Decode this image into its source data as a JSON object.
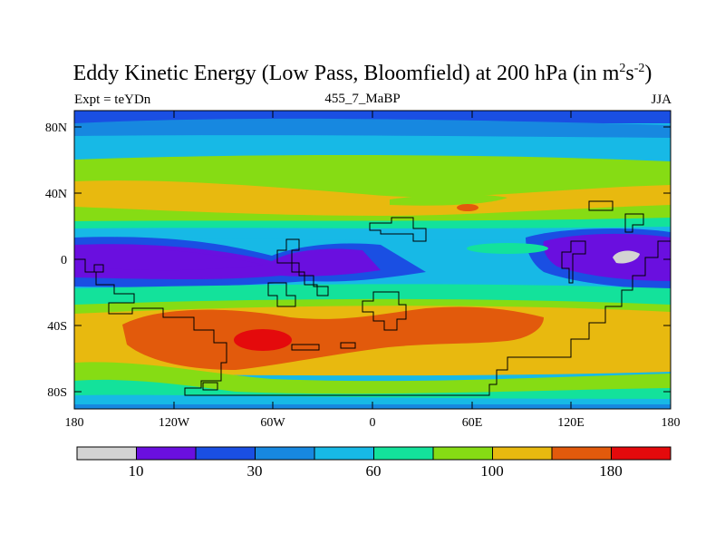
{
  "title": {
    "main": "Eddy Kinetic Energy (Low Pass, Bloomfield) at 200 hPa (in m",
    "sup1": "2",
    "mid": "s",
    "sup2": "-2",
    "end": ")"
  },
  "subtitle": {
    "left": "Expt = teYDn",
    "center": "455_7_MaBP",
    "right": "JJA"
  },
  "map": {
    "type": "filled-contour",
    "field": "Eddy Kinetic Energy",
    "units": "m2 s-2",
    "lon_range": [
      -180,
      180
    ],
    "lat_range": [
      -90,
      90
    ],
    "x_ticks": [
      "180",
      "120W",
      "60W",
      "0",
      "60E",
      "120E",
      "180"
    ],
    "y_ticks": [
      "80N",
      "40N",
      "0",
      "40S",
      "80S"
    ]
  },
  "colorbar": {
    "colors": [
      "#d3d3d3",
      "#6a0fdf",
      "#1a4fe3",
      "#1788e0",
      "#17b9e6",
      "#13e29b",
      "#86dc14",
      "#e8b90f",
      "#e25a0c",
      "#e40a0c"
    ],
    "labels": [
      "10",
      "30",
      "60",
      "100",
      "180"
    ]
  }
}
